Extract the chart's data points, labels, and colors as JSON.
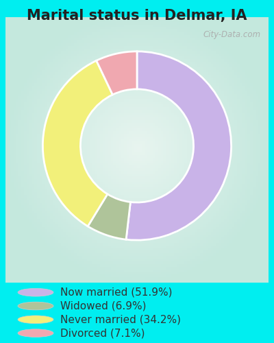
{
  "title": "Marital status in Delmar, IA",
  "slices": [
    51.9,
    6.9,
    34.2,
    7.1
  ],
  "labels": [
    "Now married (51.9%)",
    "Widowed (6.9%)",
    "Never married (34.2%)",
    "Divorced (7.1%)"
  ],
  "colors": [
    "#c9b3e8",
    "#afc49a",
    "#f2f07a",
    "#f0a8b0"
  ],
  "legend_colors": [
    "#c9b3e8",
    "#afc49a",
    "#f2f07a",
    "#f0a8b0"
  ],
  "bg_cyan": "#00eef0",
  "bg_chart_center": "#d8ede8",
  "bg_chart_edge": "#c8e8df",
  "donut_width": 0.4,
  "start_angle": 90,
  "title_fontsize": 15,
  "legend_fontsize": 11,
  "watermark": "City-Data.com"
}
